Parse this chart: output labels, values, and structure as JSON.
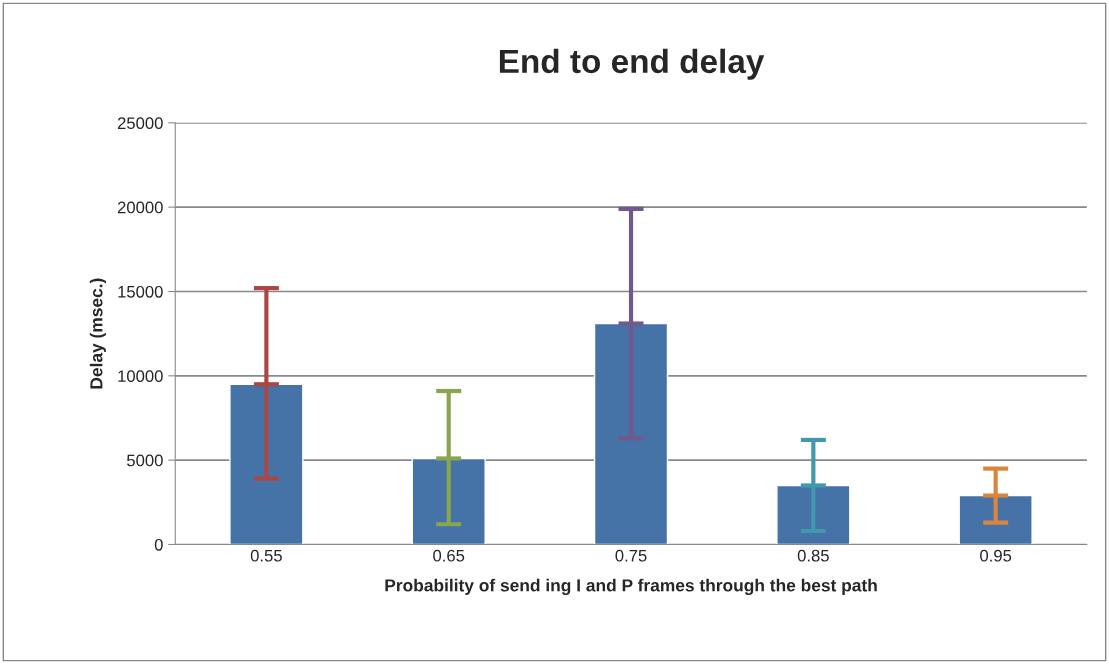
{
  "chart_data": {
    "type": "bar",
    "title": "End to end delay",
    "xlabel": "Probability of send ing I and P frames through the best path",
    "ylabel": "Delay (msec.)",
    "categories": [
      "0.55",
      "0.65",
      "0.75",
      "0.85",
      "0.95"
    ],
    "values": [
      9500,
      5100,
      13100,
      3500,
      2900
    ],
    "color": "#4572a7",
    "errors": [
      [
        3900,
        15200
      ],
      [
        1200,
        9100
      ],
      [
        6300,
        19900
      ],
      [
        800,
        6200
      ],
      [
        1300,
        4500
      ]
    ],
    "ylim": [
      0,
      25000
    ],
    "yticks": [
      0,
      5000,
      10000,
      15000,
      20000,
      25000
    ],
    "grid": "y",
    "legend": false
  }
}
